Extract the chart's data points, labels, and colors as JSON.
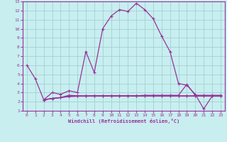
{
  "xlabel": "Windchill (Refroidissement éolien,°C)",
  "background_color": "#c8eef0",
  "line_color": "#993399",
  "grid_color": "#99cccc",
  "xlim": [
    -0.5,
    23.5
  ],
  "ylim": [
    1,
    13
  ],
  "xticks": [
    0,
    1,
    2,
    3,
    4,
    5,
    6,
    7,
    8,
    9,
    10,
    11,
    12,
    13,
    14,
    15,
    16,
    17,
    18,
    19,
    20,
    21,
    22,
    23
  ],
  "yticks": [
    1,
    2,
    3,
    4,
    5,
    6,
    7,
    8,
    9,
    10,
    11,
    12,
    13
  ],
  "series1": [
    [
      0,
      6.0
    ],
    [
      1,
      4.5
    ],
    [
      2,
      2.2
    ],
    [
      3,
      3.0
    ],
    [
      4,
      2.8
    ],
    [
      5,
      3.2
    ],
    [
      6,
      3.0
    ],
    [
      7,
      7.5
    ],
    [
      8,
      5.2
    ],
    [
      9,
      10.0
    ],
    [
      10,
      11.4
    ],
    [
      11,
      12.1
    ],
    [
      12,
      11.9
    ],
    [
      13,
      12.8
    ],
    [
      14,
      12.1
    ],
    [
      15,
      11.1
    ],
    [
      16,
      9.2
    ],
    [
      17,
      7.5
    ],
    [
      18,
      4.0
    ],
    [
      19,
      3.8
    ],
    [
      20,
      2.8
    ],
    [
      21,
      1.2
    ],
    [
      22,
      2.6
    ],
    [
      23,
      2.6
    ]
  ],
  "series2": [
    [
      2,
      2.2
    ],
    [
      3,
      2.35
    ],
    [
      4,
      2.45
    ],
    [
      5,
      2.55
    ],
    [
      6,
      2.6
    ],
    [
      7,
      2.6
    ],
    [
      8,
      2.65
    ],
    [
      9,
      2.65
    ],
    [
      10,
      2.65
    ],
    [
      11,
      2.65
    ],
    [
      12,
      2.65
    ],
    [
      13,
      2.65
    ],
    [
      14,
      2.7
    ],
    [
      15,
      2.7
    ],
    [
      16,
      2.7
    ],
    [
      17,
      2.7
    ],
    [
      18,
      2.7
    ],
    [
      19,
      3.9
    ],
    [
      20,
      2.7
    ],
    [
      21,
      2.7
    ],
    [
      22,
      2.7
    ],
    [
      23,
      2.7
    ]
  ],
  "series3": [
    [
      2,
      2.2
    ],
    [
      3,
      2.35
    ],
    [
      4,
      2.45
    ],
    [
      5,
      2.6
    ],
    [
      6,
      2.6
    ],
    [
      7,
      2.6
    ],
    [
      8,
      2.6
    ],
    [
      9,
      2.6
    ],
    [
      10,
      2.6
    ],
    [
      11,
      2.6
    ],
    [
      12,
      2.6
    ],
    [
      13,
      2.6
    ],
    [
      14,
      2.6
    ],
    [
      15,
      2.6
    ],
    [
      16,
      2.6
    ],
    [
      17,
      2.6
    ],
    [
      18,
      2.6
    ],
    [
      19,
      2.6
    ],
    [
      20,
      2.6
    ],
    [
      21,
      2.6
    ],
    [
      22,
      2.6
    ],
    [
      23,
      2.6
    ]
  ],
  "series4": [
    [
      2,
      2.2
    ],
    [
      3,
      2.35
    ],
    [
      4,
      2.45
    ],
    [
      5,
      2.7
    ],
    [
      6,
      2.65
    ],
    [
      7,
      2.65
    ],
    [
      8,
      2.65
    ],
    [
      9,
      2.65
    ],
    [
      10,
      2.65
    ],
    [
      11,
      2.65
    ],
    [
      12,
      2.65
    ],
    [
      13,
      2.65
    ],
    [
      14,
      2.65
    ],
    [
      15,
      2.65
    ],
    [
      16,
      2.65
    ],
    [
      17,
      2.65
    ],
    [
      18,
      2.65
    ],
    [
      19,
      2.65
    ],
    [
      20,
      2.65
    ],
    [
      21,
      2.65
    ],
    [
      22,
      2.65
    ],
    [
      23,
      2.65
    ]
  ]
}
